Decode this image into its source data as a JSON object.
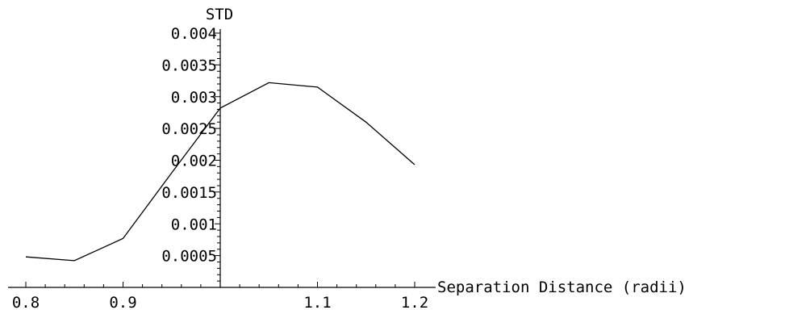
{
  "chart_data": {
    "type": "line",
    "title": "",
    "ylabel": "STD",
    "xlabel": "Separation Distance (radii)",
    "xlim": [
      0.8,
      1.2
    ],
    "ylim": [
      0,
      0.004
    ],
    "axis_origin_x": 1.0,
    "grid": false,
    "legend": "none",
    "x_tick_labels": [
      "0.8",
      "0.9",
      "1.1",
      "1.2"
    ],
    "x_tick_values": [
      0.8,
      0.9,
      1.1,
      1.2
    ],
    "y_tick_labels": [
      "0.0005",
      "0.001",
      "0.0015",
      "0.002",
      "0.0025",
      "0.003",
      "0.0035",
      "0.004"
    ],
    "y_tick_values": [
      0.0005,
      0.001,
      0.0015,
      0.002,
      0.0025,
      0.003,
      0.0035,
      0.004
    ],
    "series": [
      {
        "x": [
          0.8,
          0.85,
          0.9,
          0.95,
          1.0,
          1.05,
          1.1,
          1.15,
          1.2
        ],
        "y": [
          0.00048,
          0.00042,
          0.00077,
          0.0018,
          0.00282,
          0.00322,
          0.00315,
          0.0026,
          0.00193
        ],
        "color": "#000000"
      }
    ]
  }
}
